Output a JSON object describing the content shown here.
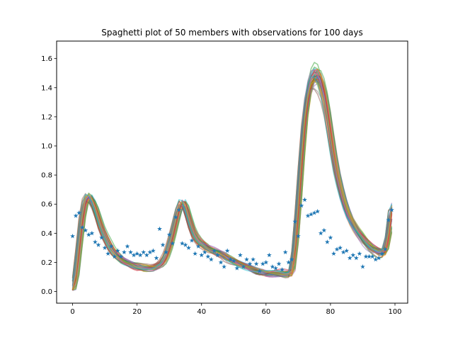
{
  "chart_data": {
    "type": "line",
    "title": "Spaghetti plot of 50 members with observations for 100 days",
    "xlabel": "",
    "ylabel": "",
    "xlim": [
      -4.95,
      103.95
    ],
    "ylim": [
      -0.08,
      1.72
    ],
    "x_ticks": [
      0,
      20,
      40,
      60,
      80,
      100
    ],
    "y_ticks": [
      0.0,
      0.2,
      0.4,
      0.6,
      0.8,
      1.0,
      1.2,
      1.4,
      1.6
    ],
    "x_tick_labels": [
      "0",
      "20",
      "40",
      "60",
      "80",
      "100"
    ],
    "y_tick_labels": [
      "0.0",
      "0.2",
      "0.4",
      "0.6",
      "0.8",
      "1.0",
      "1.2",
      "1.4",
      "1.6"
    ],
    "grid": false,
    "legend": "none",
    "ensemble": {
      "member_count": 50,
      "opacity": 0.5,
      "colors": [
        "#1f77b4",
        "#ff7f0e",
        "#2ca02c",
        "#d62728",
        "#9467bd",
        "#8c564b",
        "#e377c2",
        "#7f7f7f",
        "#bcbd22",
        "#17becf"
      ],
      "x": [
        0,
        1,
        2,
        3,
        4,
        5,
        6,
        7,
        8,
        9,
        10,
        11,
        12,
        13,
        14,
        15,
        16,
        17,
        18,
        19,
        20,
        21,
        22,
        23,
        24,
        25,
        26,
        27,
        28,
        29,
        30,
        31,
        32,
        33,
        34,
        35,
        36,
        37,
        38,
        39,
        40,
        41,
        42,
        43,
        44,
        45,
        46,
        47,
        48,
        49,
        50,
        51,
        52,
        53,
        54,
        55,
        56,
        57,
        58,
        59,
        60,
        61,
        62,
        63,
        64,
        65,
        66,
        67,
        68,
        69,
        70,
        71,
        72,
        73,
        74,
        75,
        76,
        77,
        78,
        79,
        80,
        81,
        82,
        83,
        84,
        85,
        86,
        87,
        88,
        89,
        90,
        91,
        92,
        93,
        94,
        95,
        96,
        97,
        98,
        99
      ],
      "mean": [
        0.01,
        0.1,
        0.3,
        0.5,
        0.62,
        0.65,
        0.62,
        0.57,
        0.5,
        0.43,
        0.38,
        0.34,
        0.3,
        0.27,
        0.25,
        0.23,
        0.21,
        0.2,
        0.19,
        0.18,
        0.17,
        0.17,
        0.16,
        0.16,
        0.16,
        0.16,
        0.17,
        0.18,
        0.2,
        0.24,
        0.3,
        0.38,
        0.47,
        0.56,
        0.61,
        0.58,
        0.5,
        0.43,
        0.38,
        0.35,
        0.33,
        0.32,
        0.3,
        0.29,
        0.28,
        0.27,
        0.26,
        0.25,
        0.23,
        0.22,
        0.21,
        0.2,
        0.19,
        0.18,
        0.17,
        0.16,
        0.15,
        0.14,
        0.13,
        0.13,
        0.12,
        0.12,
        0.12,
        0.12,
        0.12,
        0.12,
        0.12,
        0.12,
        0.13,
        0.3,
        0.58,
        0.9,
        1.18,
        1.35,
        1.45,
        1.49,
        1.49,
        1.45,
        1.37,
        1.25,
        1.1,
        0.95,
        0.82,
        0.72,
        0.63,
        0.56,
        0.5,
        0.46,
        0.42,
        0.39,
        0.36,
        0.33,
        0.31,
        0.29,
        0.28,
        0.27,
        0.26,
        0.28,
        0.38,
        0.58
      ],
      "envelope_halfwidth": [
        0.01,
        0.03,
        0.05,
        0.05,
        0.05,
        0.05,
        0.05,
        0.04,
        0.04,
        0.04,
        0.04,
        0.04,
        0.04,
        0.04,
        0.04,
        0.04,
        0.04,
        0.04,
        0.04,
        0.04,
        0.04,
        0.04,
        0.04,
        0.04,
        0.04,
        0.04,
        0.04,
        0.04,
        0.04,
        0.04,
        0.04,
        0.04,
        0.04,
        0.05,
        0.05,
        0.05,
        0.05,
        0.05,
        0.04,
        0.04,
        0.04,
        0.04,
        0.04,
        0.04,
        0.04,
        0.04,
        0.04,
        0.04,
        0.04,
        0.04,
        0.04,
        0.04,
        0.04,
        0.04,
        0.04,
        0.04,
        0.04,
        0.04,
        0.04,
        0.04,
        0.04,
        0.04,
        0.04,
        0.04,
        0.04,
        0.04,
        0.04,
        0.04,
        0.04,
        0.05,
        0.07,
        0.09,
        0.1,
        0.11,
        0.12,
        0.13,
        0.13,
        0.12,
        0.11,
        0.1,
        0.08,
        0.07,
        0.06,
        0.05,
        0.05,
        0.05,
        0.05,
        0.05,
        0.05,
        0.05,
        0.05,
        0.05,
        0.05,
        0.05,
        0.05,
        0.05,
        0.05,
        0.05,
        0.06,
        0.06
      ]
    },
    "observations": {
      "marker": "star",
      "color": "#1f77b4",
      "x": [
        0,
        1,
        2,
        3,
        4,
        5,
        6,
        7,
        8,
        9,
        10,
        11,
        12,
        13,
        14,
        15,
        16,
        17,
        18,
        19,
        20,
        21,
        22,
        23,
        24,
        25,
        26,
        27,
        28,
        29,
        30,
        31,
        32,
        33,
        34,
        35,
        36,
        37,
        38,
        39,
        40,
        41,
        42,
        43,
        44,
        45,
        46,
        47,
        48,
        49,
        50,
        51,
        52,
        53,
        54,
        55,
        56,
        57,
        58,
        59,
        60,
        61,
        62,
        63,
        64,
        65,
        66,
        67,
        68,
        69,
        70,
        71,
        72,
        73,
        74,
        75,
        76,
        77,
        78,
        79,
        80,
        81,
        82,
        83,
        84,
        85,
        86,
        87,
        88,
        89,
        90,
        91,
        92,
        93,
        94,
        95,
        96,
        97,
        98,
        99
      ],
      "y": [
        0.38,
        0.52,
        0.54,
        0.44,
        0.42,
        0.39,
        0.4,
        0.34,
        0.32,
        0.37,
        0.3,
        0.26,
        0.31,
        0.24,
        0.28,
        0.24,
        0.27,
        0.31,
        0.27,
        0.25,
        0.26,
        0.25,
        0.27,
        0.25,
        0.27,
        0.28,
        0.23,
        0.43,
        0.32,
        0.27,
        0.39,
        0.33,
        0.51,
        0.56,
        0.33,
        0.32,
        0.3,
        0.35,
        0.26,
        0.31,
        0.25,
        0.27,
        0.24,
        0.22,
        0.28,
        0.25,
        0.2,
        0.17,
        0.28,
        0.22,
        0.21,
        0.16,
        0.25,
        0.17,
        0.22,
        0.19,
        0.22,
        0.19,
        0.14,
        0.19,
        0.2,
        0.25,
        0.17,
        0.16,
        0.19,
        0.15,
        0.27,
        0.2,
        0.22,
        0.48,
        0.38,
        0.59,
        0.63,
        0.52,
        0.53,
        0.54,
        0.55,
        0.4,
        0.42,
        0.34,
        0.37,
        0.26,
        0.29,
        0.3,
        0.27,
        0.28,
        0.23,
        0.25,
        0.23,
        0.26,
        0.17,
        0.24,
        0.24,
        0.24,
        0.22,
        0.23,
        0.26,
        0.29,
        0.49,
        0.56
      ]
    }
  }
}
